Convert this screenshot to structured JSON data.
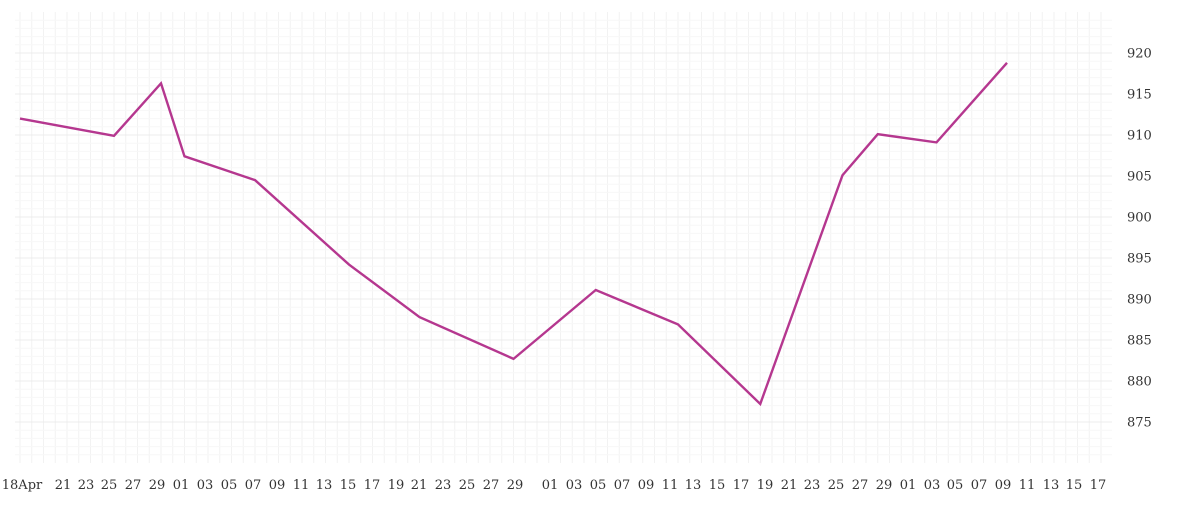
{
  "chart_data": {
    "type": "line",
    "title": "",
    "xlabel": "",
    "ylabel": "",
    "x_tick_labels": [
      "18Apr",
      "21",
      "23",
      "25",
      "27",
      "29",
      "01",
      "03",
      "05",
      "07",
      "09",
      "11",
      "13",
      "15",
      "17",
      "19",
      "21",
      "23",
      "25",
      "27",
      "29",
      "01",
      "03",
      "05",
      "07",
      "09",
      "11",
      "13",
      "15",
      "17",
      "19",
      "21",
      "23",
      "25",
      "27",
      "29",
      "01",
      "03",
      "05",
      "07",
      "09",
      "11",
      "13",
      "15",
      "17"
    ],
    "y_ticks": [
      875,
      880,
      885,
      890,
      895,
      900,
      905,
      910,
      915,
      920
    ],
    "ylim": [
      870,
      925
    ],
    "xlim": [
      "2024-04-18",
      "2024-07-18"
    ],
    "y_axis_position": "right",
    "grid": true,
    "legend": "none",
    "series": [
      {
        "color": "#b5378f",
        "points": [
          {
            "x": "2024-04-18",
            "y": 912.0
          },
          {
            "x": "2024-04-26",
            "y": 909.9
          },
          {
            "x": "2024-04-30",
            "y": 916.3
          },
          {
            "x": "2024-05-02",
            "y": 907.4
          },
          {
            "x": "2024-05-08",
            "y": 904.5
          },
          {
            "x": "2024-05-16",
            "y": 894.2
          },
          {
            "x": "2024-05-22",
            "y": 887.8
          },
          {
            "x": "2024-05-30",
            "y": 882.7
          },
          {
            "x": "2024-06-06",
            "y": 891.1
          },
          {
            "x": "2024-06-13",
            "y": 886.9
          },
          {
            "x": "2024-06-20",
            "y": 877.2
          },
          {
            "x": "2024-06-27",
            "y": 905.1
          },
          {
            "x": "2024-06-30",
            "y": 910.1
          },
          {
            "x": "2024-07-05",
            "y": 909.1
          },
          {
            "x": "2024-07-11",
            "y": 918.8
          }
        ]
      }
    ]
  }
}
